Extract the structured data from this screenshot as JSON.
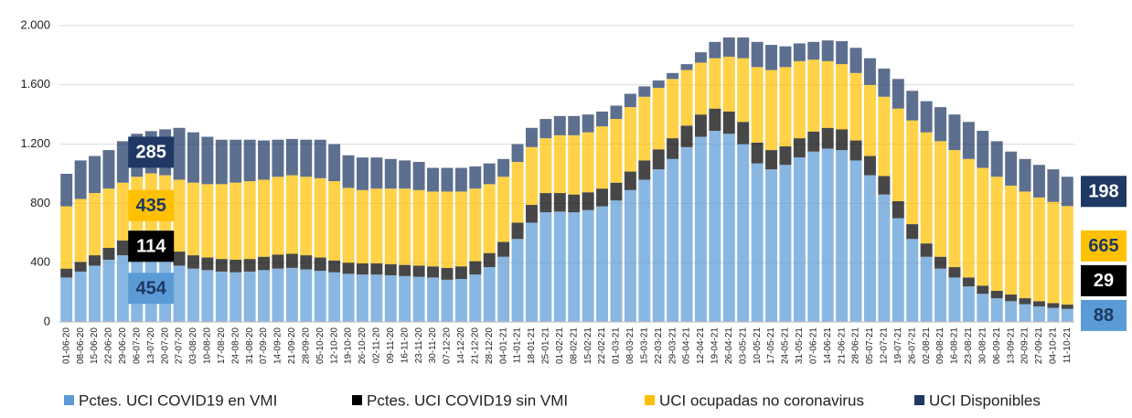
{
  "chart_data": {
    "type": "stacked_bar",
    "categories": [
      "01-06-20",
      "08-06-20",
      "15-06-20",
      "22-06-20",
      "29-06-20",
      "06-07-20",
      "13-07-20",
      "20-07-20",
      "27-07-20",
      "03-08-20",
      "10-08-20",
      "17-08-20",
      "24-08-20",
      "31-08-20",
      "07-09-20",
      "14-09-20",
      "21-09-20",
      "28-09-20",
      "05-10-20",
      "12-10-20",
      "19-10-20",
      "26-10-20",
      "02-11-20",
      "09-11-20",
      "16-11-20",
      "23-11-20",
      "30-11-20",
      "07-12-20",
      "14-12-20",
      "21-12-20",
      "28-12-20",
      "04-01-21",
      "11-01-21",
      "18-01-21",
      "25-01-21",
      "01-02-21",
      "08-02-21",
      "15-02-21",
      "22-02-21",
      "01-03-21",
      "08-03-21",
      "15-03-21",
      "22-03-21",
      "29-03-21",
      "05-04-21",
      "12-04-21",
      "19-04-21",
      "26-04-21",
      "03-05-21",
      "10-05-21",
      "17-05-21",
      "24-05-21",
      "31-05-21",
      "07-06-21",
      "14-06-21",
      "21-06-21",
      "28-06-21",
      "05-07-21",
      "12-07-21",
      "19-07-21",
      "26-07-21",
      "02-08-21",
      "09-08-21",
      "16-08-21",
      "23-08-21",
      "30-08-21",
      "06-09-21",
      "13-09-21",
      "20-09-21",
      "27-09-21",
      "04-10-21",
      "11-10-21"
    ],
    "series": [
      {
        "name": "Pctes. UCI COVID19 en VMI",
        "color": "#5b9bd5",
        "label_color": "#1f3864",
        "values": [
          300,
          340,
          380,
          420,
          450,
          470,
          454,
          410,
          380,
          360,
          350,
          340,
          335,
          340,
          350,
          360,
          365,
          355,
          345,
          335,
          325,
          320,
          320,
          315,
          310,
          305,
          300,
          285,
          290,
          320,
          370,
          440,
          560,
          670,
          740,
          745,
          740,
          755,
          780,
          820,
          890,
          960,
          1030,
          1100,
          1180,
          1250,
          1290,
          1270,
          1200,
          1070,
          1030,
          1060,
          1110,
          1150,
          1170,
          1160,
          1090,
          990,
          860,
          700,
          560,
          440,
          360,
          300,
          240,
          190,
          160,
          140,
          120,
          105,
          95,
          88
        ]
      },
      {
        "name": "Pctes. UCI COVID19 sin VMI",
        "color": "#000000",
        "label_color": "#ffffff",
        "values": [
          60,
          65,
          70,
          80,
          100,
          110,
          114,
          105,
          95,
          90,
          85,
          85,
          85,
          85,
          90,
          95,
          95,
          95,
          90,
          80,
          75,
          75,
          75,
          75,
          75,
          75,
          75,
          80,
          85,
          90,
          95,
          100,
          110,
          120,
          130,
          125,
          120,
          120,
          120,
          120,
          125,
          130,
          135,
          140,
          145,
          150,
          150,
          150,
          150,
          140,
          130,
          125,
          130,
          135,
          140,
          140,
          135,
          130,
          125,
          115,
          100,
          90,
          80,
          70,
          60,
          55,
          50,
          45,
          40,
          35,
          32,
          29
        ]
      },
      {
        "name": "UCI ocupadas no coronavirus",
        "color": "#ffc000",
        "label_color": "#1f3864",
        "values": [
          420,
          425,
          420,
          400,
          390,
          400,
          435,
          475,
          485,
          490,
          495,
          505,
          520,
          525,
          520,
          525,
          530,
          530,
          535,
          535,
          505,
          495,
          505,
          510,
          515,
          510,
          505,
          515,
          505,
          490,
          465,
          440,
          410,
          390,
          370,
          390,
          400,
          405,
          420,
          430,
          435,
          430,
          415,
          400,
          375,
          350,
          340,
          370,
          430,
          510,
          540,
          535,
          520,
          485,
          450,
          440,
          455,
          480,
          535,
          625,
          700,
          750,
          780,
          790,
          800,
          795,
          770,
          735,
          720,
          700,
          683,
          665
        ]
      },
      {
        "name": "UCI Disponibles",
        "color": "#1f3864",
        "label_color": "#ffffff",
        "values": [
          220,
          260,
          250,
          260,
          280,
          290,
          285,
          310,
          350,
          340,
          320,
          300,
          290,
          280,
          265,
          250,
          245,
          250,
          260,
          250,
          220,
          220,
          210,
          200,
          190,
          190,
          160,
          160,
          160,
          150,
          140,
          120,
          120,
          130,
          130,
          130,
          130,
          120,
          100,
          90,
          90,
          70,
          50,
          40,
          40,
          70,
          110,
          130,
          140,
          170,
          170,
          140,
          120,
          120,
          140,
          155,
          170,
          180,
          190,
          200,
          200,
          210,
          230,
          240,
          250,
          250,
          240,
          230,
          220,
          220,
          220,
          198
        ]
      }
    ],
    "data_labels_at": [
      6,
      71
    ],
    "ylim": [
      0,
      2000
    ],
    "yticks": [
      0,
      400,
      800,
      {
        "value": 1200,
        "label": "1.200"
      },
      {
        "value": 1600,
        "label": "1.600"
      },
      {
        "value": 2000,
        "label": "2.000"
      }
    ],
    "grid": true
  }
}
